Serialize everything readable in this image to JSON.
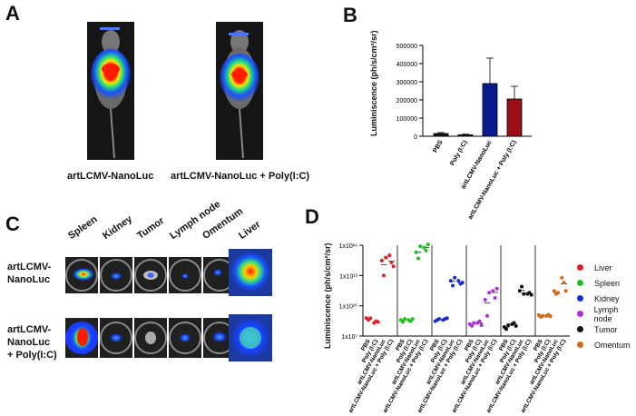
{
  "panels": {
    "A": "A",
    "B": "B",
    "C": "C",
    "D": "D"
  },
  "panel_a": {
    "captions": [
      "artLCMV-NanoLuc",
      "artLCMV-NanoLuc + Poly(I:C)"
    ]
  },
  "panel_c": {
    "columns": [
      "Spleen",
      "Kidney",
      "Tumor",
      "Lymph node",
      "Omentum",
      "Liver"
    ],
    "rows": [
      {
        "line1": "artLCMV-",
        "line2": "NanoLuc",
        "line3": ""
      },
      {
        "line1": "artLCMV-",
        "line2": "NanoLuc",
        "line3": "+ Poly(I:C)"
      }
    ]
  },
  "colors": {
    "pbs_bar": "#1a1a1a",
    "nanoluc_bar": "#0a1a8c",
    "polyic_bar": "#9b1018",
    "liver": "#e02020",
    "spleen": "#22c022",
    "kidney": "#1a2cc8",
    "lymph": "#b030d8",
    "tumor": "#111111",
    "omentum": "#d06a1a"
  },
  "chart_data": [
    {
      "type": "bar",
      "panel": "B",
      "ylabel": "Luminiscence (ph/s/cm²/sr)",
      "categories": [
        "PBS",
        "Poly (I:C)",
        "artLCMV-NanoLuc",
        "artLCMV-NanoLuc + Poly (I:C)"
      ],
      "values": [
        15000,
        8000,
        290000,
        205000
      ],
      "errors": [
        5000,
        3000,
        140000,
        70000
      ],
      "ylim": [
        0,
        500000
      ],
      "yticks": [
        "0",
        "100000",
        "200000",
        "300000",
        "400000",
        "500000"
      ]
    },
    {
      "type": "scatter",
      "panel": "D",
      "ylabel": "Luminiscence (ph/s/cm²/sr)",
      "scale": "log",
      "ylim": [
        10000000,
        10000000000000000
      ],
      "yticks": [
        "1x10⁷",
        "1x10¹⁰",
        "1x10¹³",
        "1x10¹⁶"
      ],
      "tick_exps": [
        7,
        10,
        13,
        16
      ],
      "categories": [
        "PBS",
        "Poly (I:C)",
        "artLCMV-NanoLuc",
        "artLCMV-NanoLuc + Poly (I:C)"
      ],
      "legend": [
        "Liver",
        "Spleen",
        "Kidney",
        "Lymph node",
        "Tumor",
        "Omentum"
      ],
      "series": [
        {
          "name": "Liver",
          "values": [
            [
              600000000.0,
              400000000.0,
              600000000.0
            ],
            [
              200000000.0,
              300000000.0,
              250000000.0
            ],
            [
              300000000000000.0,
              10000000000000.0,
              600000000000000.0
            ],
            [
              1000000000000000.0,
              200000000000000.0,
              80000000000000.0
            ]
          ]
        },
        {
          "name": "Spleen",
          "values": [
            [
              400000000.0,
              250000000.0,
              500000000.0
            ],
            [
              400000000.0,
              300000000.0,
              500000000.0
            ],
            [
              2000000000000000.0,
              500000000000000.0,
              8000000000000000.0
            ],
            [
              6000000000000000.0,
              3000000000000000.0,
              1.2e+16
            ]
          ]
        },
        {
          "name": "Kidney",
          "values": [
            [
              300000000.0,
              400000000.0,
              500000000.0
            ],
            [
              400000000.0,
              500000000.0,
              600000000.0
            ],
            [
              3000000000000.0,
              1000000000000.0,
              6000000000000.0
            ],
            [
              3000000000000.0,
              1500000000000.0,
              2000000000000.0
            ]
          ]
        },
        {
          "name": "Lymph node",
          "values": [
            [
              150000000.0,
              100000000.0,
              200000000.0
            ],
            [
              200000000.0,
              300000000.0,
              120000000.0
            ],
            [
              40000000000.0,
              1000000000.0,
              200000000000.0
            ],
            [
              300000000000.0,
              60000000000.0,
              500000000000.0
            ]
          ]
        },
        {
          "name": "Tumor",
          "values": [
            [
              80000000.0,
              50000000.0,
              120000000.0
            ],
            [
              150000000.0,
              200000000.0,
              100000000.0
            ],
            [
              300000000000.0,
              800000000000.0,
              150000000000.0
            ],
            [
              150000000000.0,
              200000000000.0,
              120000000000.0
            ]
          ]
        },
        {
          "name": "Omentum",
          "values": [
            [
              1200000000.0,
              800000000.0,
              1000000000.0
            ],
            [
              1000000000.0,
              1300000000.0,
              900000000.0
            ],
            [
              300000000000.0,
              150000000000.0,
              200000000000.0
            ],
            [
              6000000000000.0,
              2000000000000.0,
              300000000000.0
            ]
          ]
        }
      ]
    }
  ]
}
